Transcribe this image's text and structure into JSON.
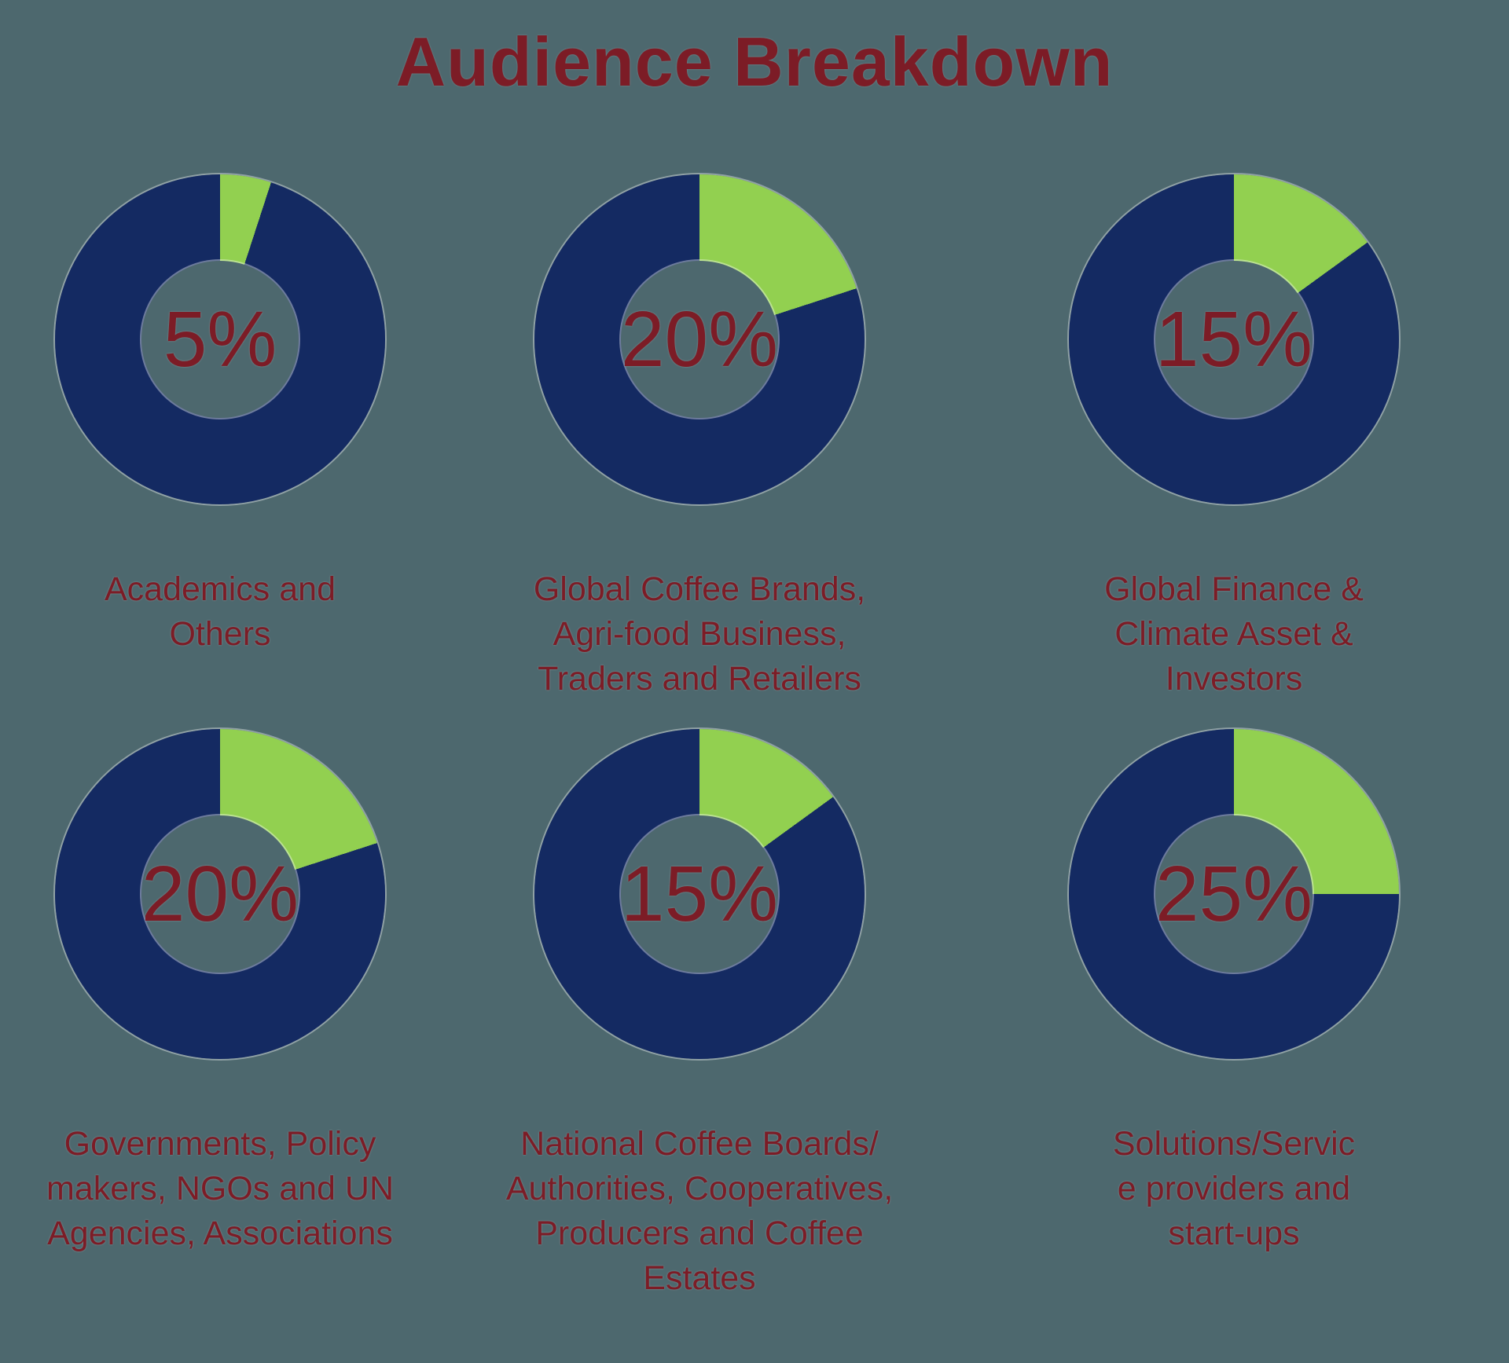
{
  "title": "Audience Breakdown",
  "colors": {
    "background": "#4d686e",
    "navy": "#142a62",
    "green": "#92d050",
    "maroon": "#7c1c26"
  },
  "chart_data": [
    {
      "type": "pie",
      "donut": true,
      "center_label": "5%",
      "highlight_pct": 5,
      "caption": "Academics and\nOthers",
      "segments": [
        {
          "name": "audience-share",
          "value": 5,
          "color": "#92d050"
        },
        {
          "name": "remainder",
          "value": 95,
          "color": "#142a62"
        }
      ]
    },
    {
      "type": "pie",
      "donut": true,
      "center_label": "20%",
      "highlight_pct": 20,
      "caption": "Global Coffee Brands,\nAgri-food Business,\nTraders and Retailers",
      "segments": [
        {
          "name": "audience-share",
          "value": 20,
          "color": "#92d050"
        },
        {
          "name": "remainder",
          "value": 80,
          "color": "#142a62"
        }
      ]
    },
    {
      "type": "pie",
      "donut": true,
      "center_label": "15%",
      "highlight_pct": 15,
      "caption": "Global Finance &\nClimate Asset &\nInvestors",
      "segments": [
        {
          "name": "audience-share",
          "value": 15,
          "color": "#92d050"
        },
        {
          "name": "remainder",
          "value": 85,
          "color": "#142a62"
        }
      ]
    },
    {
      "type": "pie",
      "donut": true,
      "center_label": "20%",
      "highlight_pct": 20,
      "caption": "Governments, Policy\nmakers, NGOs and UN\nAgencies, Associations",
      "segments": [
        {
          "name": "audience-share",
          "value": 20,
          "color": "#92d050"
        },
        {
          "name": "remainder",
          "value": 80,
          "color": "#142a62"
        }
      ]
    },
    {
      "type": "pie",
      "donut": true,
      "center_label": "15%",
      "highlight_pct": 15,
      "caption": "National Coffee Boards/\nAuthorities, Cooperatives,\nProducers and Coffee\nEstates",
      "segments": [
        {
          "name": "audience-share",
          "value": 15,
          "color": "#92d050"
        },
        {
          "name": "remainder",
          "value": 85,
          "color": "#142a62"
        }
      ]
    },
    {
      "type": "pie",
      "donut": true,
      "center_label": "25%",
      "highlight_pct": 25,
      "caption": "Solutions/Servic\ne providers and\nstart-ups",
      "segments": [
        {
          "name": "audience-share",
          "value": 25,
          "color": "#92d050"
        },
        {
          "name": "remainder",
          "value": 75,
          "color": "#142a62"
        }
      ]
    }
  ]
}
